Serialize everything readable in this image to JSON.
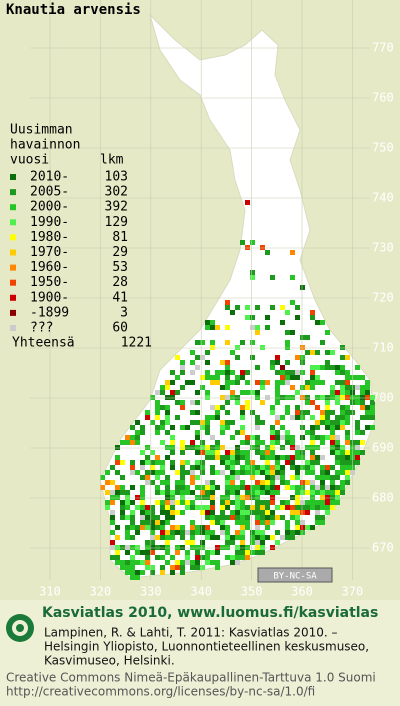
{
  "title": "Knautia arvensis",
  "legend": {
    "heading": [
      "Uusimman",
      "havainnon",
      "vuosi"
    ],
    "count_heading": "lkm",
    "items": [
      {
        "label": "2010-",
        "count": 103,
        "color": "#0b6e0b"
      },
      {
        "label": "2005-",
        "count": 302,
        "color": "#1d9a1d"
      },
      {
        "label": "2000-",
        "count": 392,
        "color": "#26c426"
      },
      {
        "label": "1990-",
        "count": 129,
        "color": "#4ef04e"
      },
      {
        "label": "1980-",
        "count": 81,
        "color": "#ffff00"
      },
      {
        "label": "1970-",
        "count": 29,
        "color": "#ffcc00"
      },
      {
        "label": "1960-",
        "count": 53,
        "color": "#ff8800"
      },
      {
        "label": "1950-",
        "count": 28,
        "color": "#ee4400"
      },
      {
        "label": "1900-",
        "count": 41,
        "color": "#cc0000"
      },
      {
        "label": "-1899",
        "count": 3,
        "color": "#880000"
      },
      {
        "label": "???",
        "count": 60,
        "color": "#cccccc"
      }
    ],
    "total_label": "Yhteensä",
    "total": 1221
  },
  "grid": {
    "north": [
      770,
      760,
      750,
      740,
      730,
      720,
      710,
      700,
      690,
      680,
      670
    ],
    "east": [
      310,
      320,
      330,
      340,
      350,
      360,
      370
    ]
  },
  "license_badge": "BY-NC-SA",
  "footer": {
    "heading": "Kasviatlas 2010, www.luomus.fi/kasviatlas",
    "citation": [
      "Lampinen, R. & Lahti, T. 2011: Kasviatlas 2010. –",
      "Helsingin Yliopisto, Luonnontieteellinen keskusmuseo,",
      "Kasvimuseo, Helsinki."
    ],
    "license": [
      "Creative Commons Nimeä-Epäkaupallinen-Tarttuva 1.0 Suomi",
      "http://creativecommons.org/licenses/by-nc-sa/1.0/fi"
    ]
  }
}
